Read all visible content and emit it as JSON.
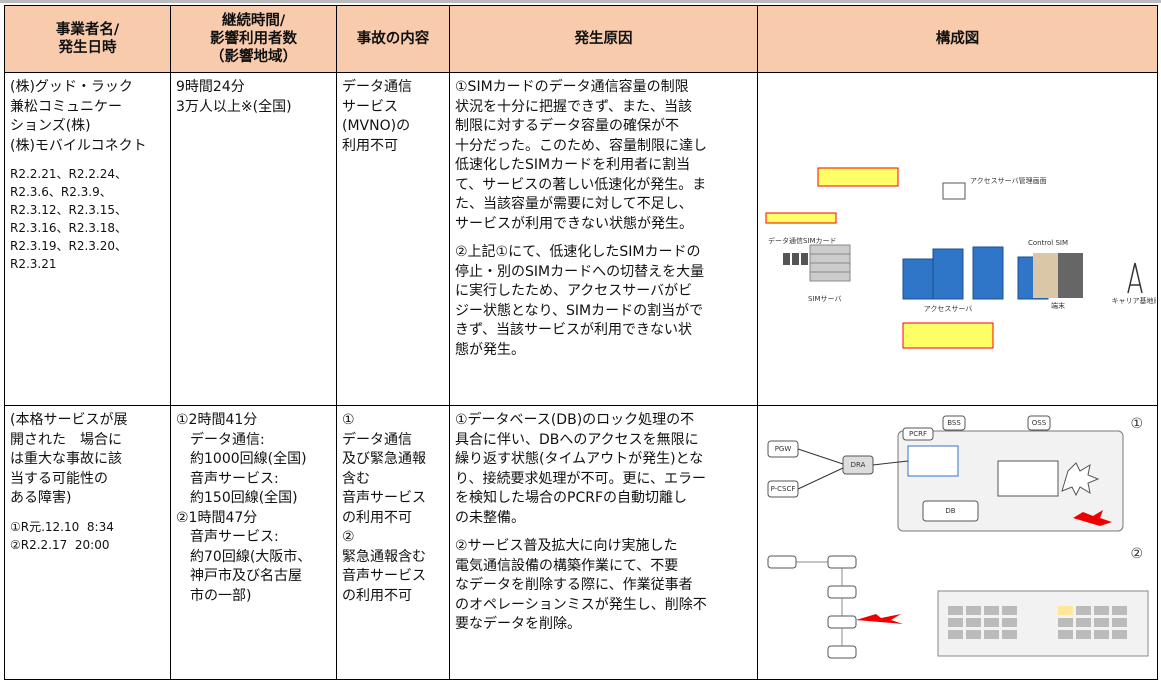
{
  "table": {
    "header": [
      [
        "事業者名/",
        "発生日時"
      ],
      [
        "継続時間/",
        "影響利用者数",
        "（影響地域）"
      ],
      [
        "事故の内容"
      ],
      [
        "発生原因"
      ],
      [
        "構成図"
      ]
    ],
    "rows": [
      {
        "operator": [
          "(株)グッド・ラック",
          "兼松コミュニケー",
          "ションズ(株)",
          "(株)モバイルコネクト"
        ],
        "dates": [
          "R2.2.21、R2.2.24、",
          "R2.3.6、R2.3.9、",
          "R2.3.12、R2.3.15、",
          "R2.3.16、R2.3.18、",
          "R2.3.19、R2.3.20、",
          "R2.3.21"
        ],
        "duration": [
          "9時間24分",
          "3万人以上※(全国)"
        ],
        "incident": [
          "データ通信",
          "サービス",
          "(MVNO)の",
          "利用不可"
        ],
        "cause": [
          [
            "①SIMカードのデータ通信容量の制限",
            "状況を十分に把握できず、また、当該",
            "制限に対するデータ容量の確保が不",
            "十分だった。このため、容量制限に達し",
            "低速化したSIMカードを利用者に割当",
            "て、サービスの著しい低速化が発生。ま",
            "た、当該容量が需要に対して不足し、",
            "サービスが利用できない状態が発生。"
          ],
          [
            "②上記①にて、低速化したSIMカードの",
            "停止・別のSIMカードへの切替えを大量",
            "に実行したため、アクセスサーバがビ",
            "ジー状態となり、SIMカードの割当がで",
            "きず、当該サービスが利用できない状",
            "態が発生。"
          ]
        ],
        "diagram": [
          "データ通信SIMカード",
          "SIMサーバ",
          "アクセスサーバ",
          "アクセスサーバ管理画面",
          "Control SIM",
          "端末",
          "キャリア基地局"
        ]
      },
      {
        "operator": [
          "(本格サービスが展",
          "開された　場合に",
          "は重大な事故に該",
          "当する可能性の",
          "ある障害)"
        ],
        "dates": [
          "①R元.12.10  8:34",
          "②R2.2.17  20:00"
        ],
        "duration": [
          "①2時間41分",
          "　データ通信:",
          "　約1000回線(全国)",
          "　音声サービス:",
          "　約150回線(全国)",
          "②1時間47分",
          "　音声サービス:",
          "　約70回線(大阪市、",
          "　神戸市及び名古屋",
          "　市の一部)"
        ],
        "incident": [
          "①",
          "データ通信",
          "及び緊急通報",
          "含む",
          "音声サービス",
          "の利用不可",
          "②",
          "緊急通報含む",
          "音声サービス",
          "の利用不可"
        ],
        "cause": [
          [
            "①データベース(DB)のロック処理の不",
            "具合に伴い、DBへのアクセスを無限に",
            "繰り返す状態(タイムアウトが発生)とな",
            "り、接続要求処理が不可。更に、エラー",
            "を検知した場合のPCRFの自動切離し",
            "の未整備。"
          ],
          [
            "②サービス普及拡大に向け実施した",
            "電気通信設備の構築作業にて、不要",
            "なデータを削除する際に、作業従事者",
            "のオペレーションミスが発生し、削除不",
            "要なデータを削除。"
          ]
        ],
        "diagram": [
          "PGW",
          "P-CSCF",
          "DRA",
          "PCRF",
          "DB",
          "BSS",
          "OSS",
          "①",
          "②"
        ]
      }
    ]
  }
}
